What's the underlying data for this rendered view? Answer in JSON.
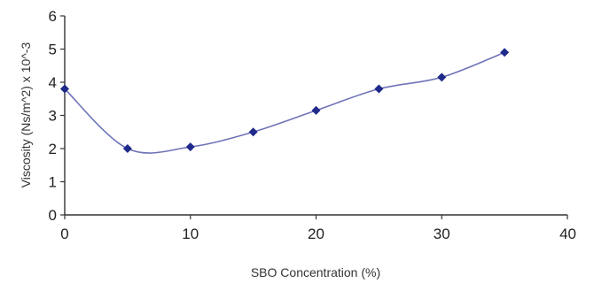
{
  "chart_data": {
    "type": "line",
    "title": "",
    "xlabel": "SBO Concentration (%)",
    "ylabel": "Viscosity (Ns/m^2) x 10^-3",
    "xlim": [
      0,
      40
    ],
    "ylim": [
      0,
      6
    ],
    "x_ticks": [
      "0",
      "10",
      "20",
      "30",
      "40"
    ],
    "y_ticks": [
      "0",
      "1",
      "2",
      "3",
      "4",
      "5",
      "6"
    ],
    "grid": false,
    "legend": "none",
    "series": [
      {
        "color": "#1f2a8a",
        "line_color": "#6f74b8",
        "marker": "diamond",
        "smooth": true,
        "points": [
          {
            "x": 0,
            "y": 3.8
          },
          {
            "x": 5,
            "y": 2.0
          },
          {
            "x": 10,
            "y": 2.05
          },
          {
            "x": 15,
            "y": 2.5
          },
          {
            "x": 20,
            "y": 3.15
          },
          {
            "x": 25,
            "y": 3.8
          },
          {
            "x": 30,
            "y": 4.15
          },
          {
            "x": 35,
            "y": 4.9
          }
        ]
      }
    ]
  }
}
